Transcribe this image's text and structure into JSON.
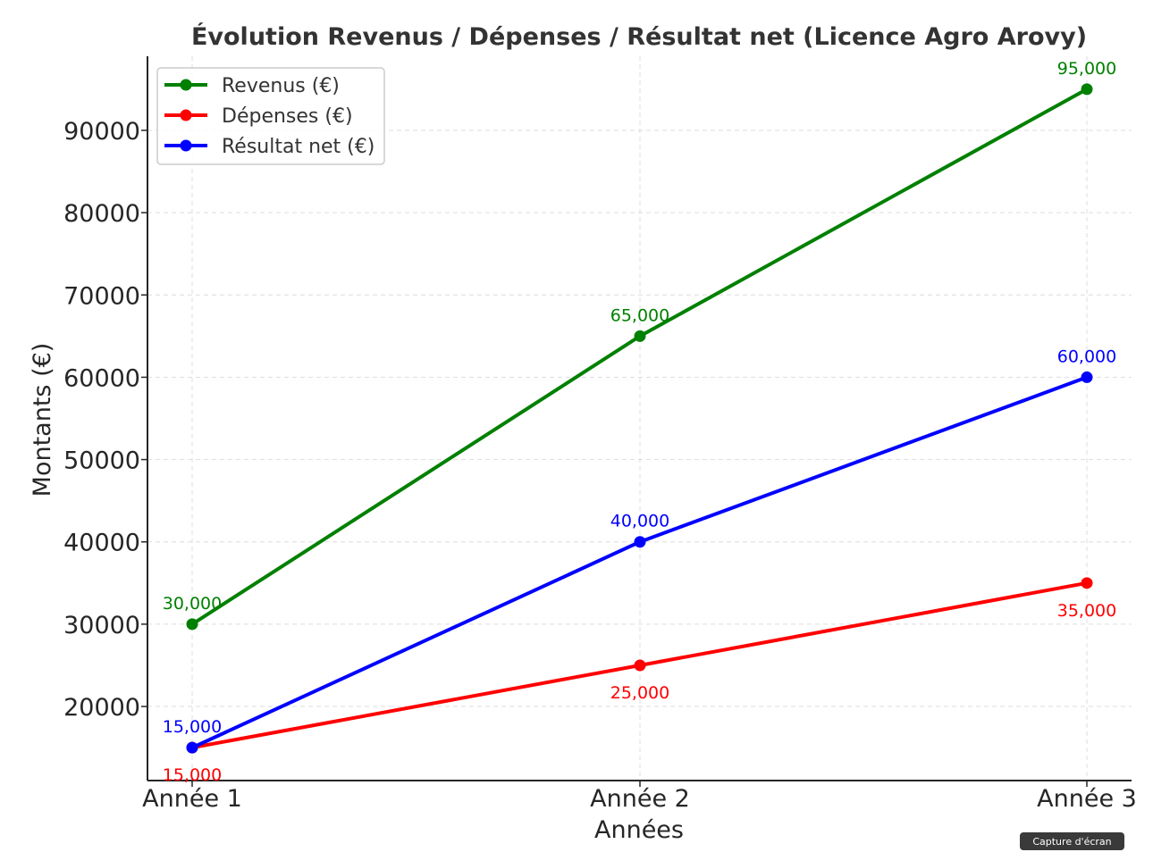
{
  "chart_data": {
    "type": "line",
    "title": "Évolution Revenus / Dépenses / Résultat net (Licence Agro Arovy)",
    "xlabel": "Années",
    "ylabel": "Montants (€)",
    "categories": [
      "Année 1",
      "Année 2",
      "Année 3"
    ],
    "ylim": [
      11000,
      99000
    ],
    "yticks": [
      20000,
      30000,
      40000,
      50000,
      60000,
      70000,
      80000,
      90000
    ],
    "ytick_labels": [
      "20000",
      "30000",
      "40000",
      "50000",
      "60000",
      "70000",
      "80000",
      "90000"
    ],
    "grid": true,
    "legend_position": "top-left",
    "series": [
      {
        "name": "Revenus (€)",
        "color": "#008000",
        "values": [
          30000,
          65000,
          95000
        ],
        "labels": [
          "30,000",
          "65,000",
          "95,000"
        ],
        "label_side": [
          "above",
          "above",
          "above"
        ]
      },
      {
        "name": "Dépenses (€)",
        "color": "#ff0000",
        "values": [
          15000,
          25000,
          35000
        ],
        "labels": [
          "15,000",
          "25,000",
          "35,000"
        ],
        "label_side": [
          "below",
          "below",
          "below"
        ]
      },
      {
        "name": "Résultat net (€)",
        "color": "#0000ff",
        "values": [
          15000,
          40000,
          60000
        ],
        "labels": [
          "15,000",
          "40,000",
          "60,000"
        ],
        "label_side": [
          "above",
          "above",
          "above"
        ]
      }
    ]
  },
  "overlay": {
    "badge_text": "Capture d'écran"
  }
}
